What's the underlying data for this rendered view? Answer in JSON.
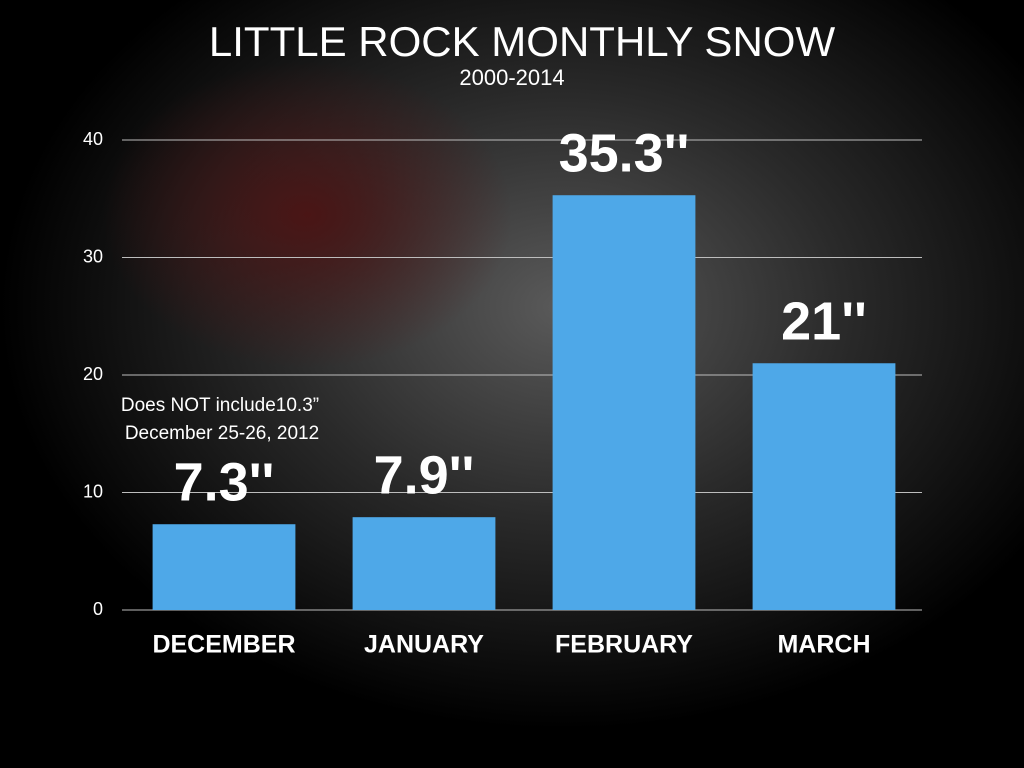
{
  "chart_data": {
    "type": "bar",
    "title": "LITTLE ROCK MONTHLY SNOW",
    "subtitle": "2000-2014",
    "categories": [
      "DECEMBER",
      "JANUARY",
      "FEBRUARY",
      "MARCH"
    ],
    "values": [
      7.3,
      7.9,
      35.3,
      21
    ],
    "value_labels": [
      "7.3''",
      "7.9''",
      "35.3''",
      "21''"
    ],
    "color": "#4ea8e8",
    "annotation": [
      "Does NOT include10.3”",
      "December 25-26, 2012"
    ],
    "ylim": [
      0,
      40
    ],
    "yticks": [
      0,
      10,
      20,
      30,
      40
    ],
    "grid": true
  }
}
